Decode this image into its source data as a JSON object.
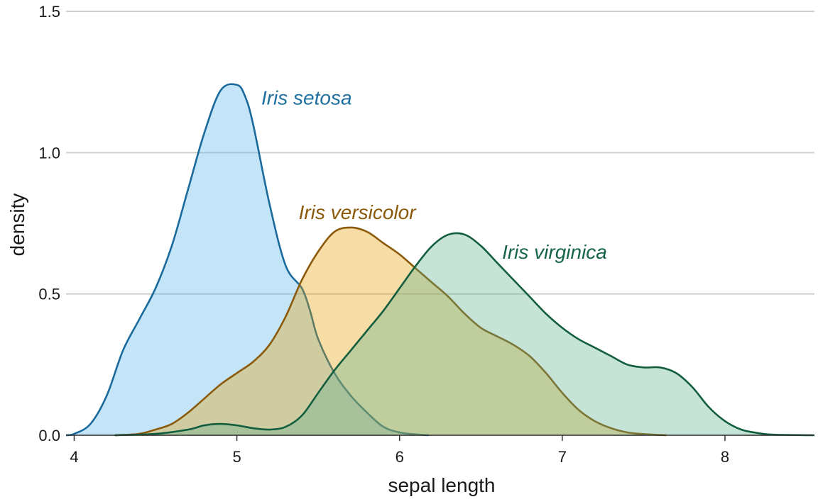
{
  "chart_data": {
    "type": "area",
    "xlabel": "sepal length",
    "ylabel": "density",
    "xlim": [
      3.95,
      8.55
    ],
    "ylim": [
      0,
      1.5
    ],
    "xticks": [
      4,
      5,
      6,
      7,
      8
    ],
    "yticks": [
      0.0,
      0.5,
      1.0,
      1.5
    ],
    "ytick_labels": [
      "0.0",
      "0.5",
      "1.0",
      "1.5"
    ],
    "grid": "horizontal",
    "series": [
      {
        "name": "Iris setosa",
        "fill": "#56B4E9",
        "line": "#1B6A9C",
        "label_color": "#1F6F9F",
        "x": [
          3.95,
          4.0,
          4.1,
          4.2,
          4.3,
          4.4,
          4.5,
          4.6,
          4.7,
          4.8,
          4.9,
          5.0,
          5.05,
          5.1,
          5.2,
          5.3,
          5.4,
          5.45,
          5.5,
          5.6,
          5.7,
          5.8,
          5.9,
          6.0,
          6.1,
          6.18
        ],
        "y": [
          0.0,
          0.005,
          0.04,
          0.14,
          0.3,
          0.41,
          0.52,
          0.67,
          0.87,
          1.07,
          1.22,
          1.24,
          1.2,
          1.1,
          0.82,
          0.6,
          0.52,
          0.44,
          0.34,
          0.22,
          0.14,
          0.08,
          0.03,
          0.01,
          0.003,
          0.0
        ]
      },
      {
        "name": "Iris versicolor",
        "fill": "#E69F00",
        "line": "#8A5A0A",
        "label_color": "#8A5A0A",
        "x": [
          4.25,
          4.4,
          4.5,
          4.6,
          4.7,
          4.8,
          4.9,
          5.0,
          5.1,
          5.2,
          5.3,
          5.4,
          5.5,
          5.6,
          5.7,
          5.8,
          5.9,
          6.0,
          6.1,
          6.2,
          6.3,
          6.4,
          6.5,
          6.6,
          6.7,
          6.8,
          6.9,
          7.0,
          7.1,
          7.2,
          7.3,
          7.4,
          7.5,
          7.64
        ],
        "y": [
          0.0,
          0.005,
          0.02,
          0.04,
          0.08,
          0.13,
          0.18,
          0.22,
          0.26,
          0.32,
          0.42,
          0.55,
          0.65,
          0.72,
          0.735,
          0.72,
          0.68,
          0.64,
          0.59,
          0.54,
          0.49,
          0.43,
          0.38,
          0.35,
          0.32,
          0.28,
          0.22,
          0.15,
          0.09,
          0.05,
          0.025,
          0.01,
          0.004,
          0.0
        ]
      },
      {
        "name": "Iris virginica",
        "fill": "#5CB08C",
        "line": "#135E3E",
        "label_color": "#176548",
        "x": [
          4.25,
          4.5,
          4.7,
          4.8,
          4.9,
          5.0,
          5.1,
          5.2,
          5.3,
          5.4,
          5.5,
          5.6,
          5.7,
          5.8,
          5.9,
          6.0,
          6.1,
          6.2,
          6.3,
          6.4,
          6.5,
          6.6,
          6.7,
          6.8,
          6.9,
          7.0,
          7.1,
          7.2,
          7.3,
          7.4,
          7.5,
          7.6,
          7.7,
          7.8,
          7.9,
          8.0,
          8.1,
          8.2,
          8.3,
          8.55
        ],
        "y": [
          0.0,
          0.005,
          0.02,
          0.035,
          0.04,
          0.035,
          0.025,
          0.02,
          0.03,
          0.07,
          0.15,
          0.23,
          0.3,
          0.37,
          0.44,
          0.52,
          0.6,
          0.67,
          0.71,
          0.71,
          0.67,
          0.61,
          0.55,
          0.49,
          0.43,
          0.38,
          0.34,
          0.31,
          0.28,
          0.25,
          0.24,
          0.24,
          0.22,
          0.17,
          0.1,
          0.05,
          0.02,
          0.008,
          0.002,
          0.0
        ]
      }
    ]
  }
}
